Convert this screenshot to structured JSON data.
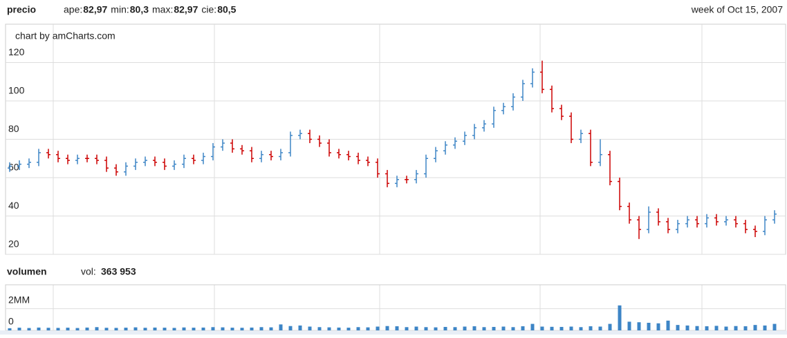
{
  "chart_data": {
    "type": "ohlc",
    "title": "precio",
    "stats": [
      {
        "label": "ape:",
        "value": "82,97"
      },
      {
        "label": "min:",
        "value": "80,3"
      },
      {
        "label": "max:",
        "value": "82,97"
      },
      {
        "label": "cie:",
        "value": "80,5"
      }
    ],
    "period": "week of Oct 15, 2007",
    "credit": "chart by amCharts.com",
    "up_color": "#3d85c6",
    "down_color": "#cc0000",
    "ylim": [
      20,
      140
    ],
    "yticks": [
      20,
      40,
      60,
      80,
      100,
      120
    ],
    "grid": true,
    "categories": [
      null,
      null,
      null,
      null,
      null,
      null,
      null,
      null,
      null,
      null,
      null,
      null,
      null,
      null,
      null,
      null,
      null,
      null,
      null,
      null,
      null,
      null,
      null,
      null,
      null,
      null,
      null,
      null,
      null,
      null,
      null,
      null,
      null,
      null,
      null,
      null,
      null,
      null,
      null,
      null,
      null,
      null,
      null,
      null,
      null,
      null,
      null,
      null,
      null,
      null,
      null,
      null,
      null,
      null,
      null,
      null,
      null,
      null,
      null,
      null,
      null,
      null,
      null,
      null,
      null,
      null,
      null,
      null,
      null,
      null,
      null,
      null,
      null,
      null,
      null,
      null,
      null,
      null,
      null,
      null
    ],
    "open": [
      65,
      66,
      67,
      68,
      73,
      72,
      70,
      69,
      70,
      70,
      69,
      65,
      63,
      66,
      68,
      69,
      68,
      66,
      67,
      70,
      69,
      71,
      76,
      78,
      75,
      74,
      70,
      72,
      71,
      73,
      82,
      83,
      80,
      78,
      73,
      72,
      71,
      69,
      68,
      62,
      57,
      59,
      59,
      62,
      70,
      74,
      77,
      79,
      82,
      86,
      88,
      95,
      97,
      102,
      109,
      115,
      106,
      96,
      92,
      80,
      83,
      68,
      72,
      58,
      45,
      38,
      33,
      42,
      37,
      33,
      36,
      38,
      36,
      39,
      37,
      38,
      36,
      33,
      32,
      38
    ],
    "high": [
      68,
      69,
      70,
      75,
      75,
      74,
      72,
      72,
      72,
      72,
      71,
      67,
      68,
      70,
      71,
      71,
      70,
      69,
      72,
      72,
      73,
      78,
      80,
      80,
      77,
      76,
      74,
      74,
      75,
      84,
      85,
      85,
      82,
      80,
      75,
      74,
      73,
      71,
      70,
      64,
      61,
      61,
      64,
      72,
      76,
      79,
      81,
      84,
      88,
      90,
      97,
      99,
      104,
      111,
      117,
      121,
      108,
      98,
      94,
      85,
      85,
      80,
      74,
      60,
      47,
      40,
      45,
      44,
      39,
      38,
      40,
      40,
      41,
      41,
      40,
      40,
      38,
      35,
      40,
      43
    ],
    "low": [
      63,
      64,
      65,
      66,
      70,
      68,
      67,
      67,
      68,
      67,
      63,
      61,
      61,
      64,
      66,
      66,
      64,
      64,
      65,
      67,
      67,
      69,
      74,
      73,
      72,
      68,
      68,
      69,
      69,
      71,
      80,
      78,
      76,
      71,
      70,
      69,
      67,
      66,
      60,
      55,
      55,
      57,
      57,
      60,
      68,
      72,
      75,
      77,
      80,
      84,
      86,
      93,
      95,
      100,
      107,
      104,
      94,
      90,
      78,
      78,
      66,
      66,
      56,
      43,
      36,
      28,
      31,
      35,
      31,
      31,
      34,
      34,
      34,
      35,
      35,
      34,
      31,
      29,
      30,
      36
    ],
    "close": [
      66,
      67,
      68,
      73,
      72,
      70,
      69,
      70,
      70,
      69,
      65,
      63,
      66,
      68,
      69,
      68,
      66,
      67,
      70,
      69,
      71,
      76,
      78,
      75,
      74,
      70,
      72,
      71,
      73,
      82,
      83,
      80,
      78,
      73,
      72,
      71,
      69,
      68,
      62,
      57,
      59,
      59,
      62,
      70,
      74,
      77,
      79,
      82,
      86,
      88,
      95,
      97,
      102,
      109,
      115,
      106,
      96,
      92,
      80,
      83,
      68,
      72,
      58,
      45,
      38,
      33,
      42,
      37,
      33,
      36,
      38,
      36,
      39,
      37,
      38,
      36,
      33,
      32,
      38,
      41
    ],
    "volume": {
      "title": "volumen",
      "label": "vol:",
      "value": "363 953",
      "color": "#3d85c6",
      "ylim": [
        0,
        4200000
      ],
      "yticks": [
        0,
        {
          "value": 2000000,
          "label": "2MM"
        }
      ],
      "values": [
        200000,
        250000,
        220000,
        260000,
        240000,
        230000,
        250000,
        220000,
        260000,
        300000,
        240000,
        230000,
        250000,
        280000,
        240000,
        260000,
        250000,
        230000,
        270000,
        250000,
        260000,
        300000,
        280000,
        250000,
        240000,
        260000,
        300000,
        280000,
        550000,
        400000,
        450000,
        350000,
        300000,
        280000,
        260000,
        250000,
        300000,
        280000,
        350000,
        400000,
        380000,
        300000,
        350000,
        300000,
        280000,
        320000,
        300000,
        350000,
        380000,
        300000,
        320000,
        350000,
        300000,
        380000,
        600000,
        350000,
        330000,
        320000,
        350000,
        300000,
        380000,
        350000,
        600000,
        2300000,
        800000,
        750000,
        700000,
        650000,
        900000,
        500000,
        450000,
        400000,
        380000,
        420000,
        350000,
        400000,
        380000,
        500000,
        450000,
        600000
      ]
    }
  }
}
